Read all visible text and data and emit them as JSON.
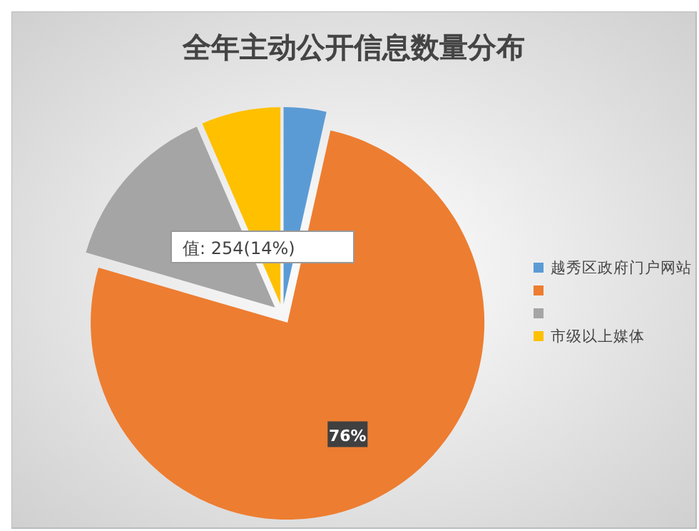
{
  "chart_data": {
    "type": "pie",
    "title": "全年主动公开信息数量分布",
    "categories": [
      "越秀区政府门户网站",
      null,
      null,
      "市级以上媒体"
    ],
    "values": [
      3.5,
      76,
      14,
      6.5
    ],
    "colors": [
      "#5b9bd5",
      "#ed7d31",
      "#a5a5a5",
      "#ffc000"
    ],
    "value_labels": [
      null,
      "76%",
      null,
      null
    ],
    "annotations": [
      "值: 254(14%)"
    ],
    "legend": "right"
  }
}
